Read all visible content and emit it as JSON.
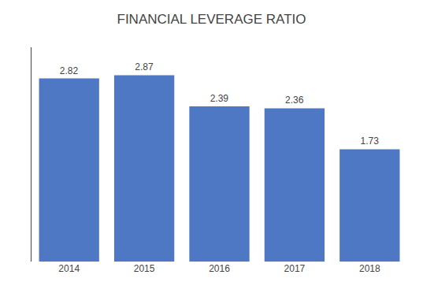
{
  "chart_data": {
    "type": "bar",
    "title": "FINANCIAL LEVERAGE RATIO",
    "categories": [
      "2014",
      "2015",
      "2016",
      "2017",
      "2018"
    ],
    "values": [
      2.82,
      2.87,
      2.39,
      2.36,
      1.73
    ],
    "color": "#4E78C4",
    "ylim": [
      0,
      3.3
    ],
    "grid": false,
    "data_labels": true,
    "tick_labels": "x"
  }
}
